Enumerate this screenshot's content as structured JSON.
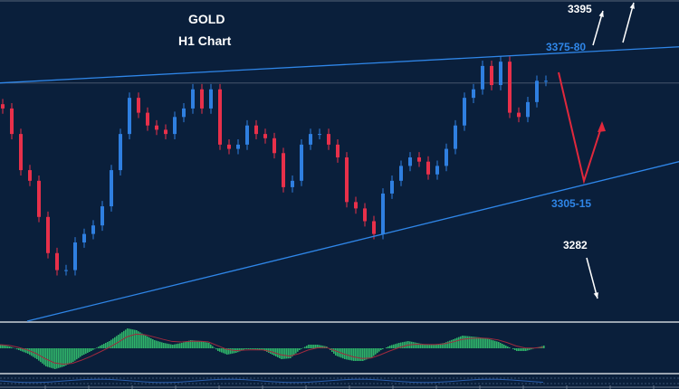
{
  "title": "GOLD",
  "subtitle": "H1 Chart",
  "colors": {
    "background": "#0a1f3b",
    "bull": "#2f7fe0",
    "bear": "#e8304a",
    "trendline": "#2f86e8",
    "macd_hist": "#2fb36a",
    "signal": "#a02a3e",
    "annotation_red": "#e0283c",
    "annotation_white": "#ffffff"
  },
  "chart_data": {
    "type": "candlestick",
    "title": "GOLD",
    "subtitle": "H1 Chart",
    "xlabel": "",
    "ylabel": "",
    "ylim": [
      3250,
      3401
    ],
    "grid": false,
    "close": [
      3350,
      3338,
      3321,
      3316,
      3299,
      3282,
      3274,
      3274,
      3287,
      3291,
      3295,
      3304,
      3321,
      3338,
      3355,
      3348,
      3342,
      3340,
      3338,
      3346,
      3350,
      3359,
      3350,
      3359,
      3333,
      3331,
      3333,
      3342,
      3338,
      3336,
      3329,
      3313,
      3316,
      3333,
      3338,
      3338,
      3333,
      3327,
      3306,
      3303,
      3297,
      3291,
      3310,
      3316,
      3323,
      3327,
      3325,
      3319,
      3323,
      3331,
      3342,
      3355,
      3359,
      3370,
      3361,
      3372,
      3348,
      3346,
      3353,
      3363,
      3363
    ],
    "levels": [
      {
        "label": "3395",
        "price": 3395,
        "color": "#ffffff"
      },
      {
        "label": "3375-80",
        "price": 3378,
        "color": "#2f86e8"
      },
      {
        "label": "3305-15",
        "price": 3310,
        "color": "#2f86e8"
      },
      {
        "label": "3282",
        "price": 3282,
        "color": "#ffffff"
      }
    ],
    "horizontal_line": 3362,
    "trendlines": [
      {
        "name": "upper",
        "start_price": 3362,
        "end_price": 3379
      },
      {
        "name": "lower",
        "start_price": 3250,
        "end_price": 3325
      }
    ],
    "macd_histogram": [
      4,
      2,
      -2,
      -6,
      -12,
      -20,
      -23,
      -20,
      -15,
      -8,
      -3,
      3,
      8,
      15,
      22,
      20,
      14,
      9,
      6,
      4,
      6,
      9,
      8,
      6,
      -3,
      -7,
      -5,
      -1,
      -1,
      -2,
      -7,
      -12,
      -11,
      -2,
      4,
      4,
      2,
      -8,
      -12,
      -14,
      -14,
      -10,
      -2,
      3,
      6,
      8,
      6,
      4,
      4,
      6,
      10,
      14,
      13,
      12,
      10,
      7,
      2,
      -3,
      -3,
      0,
      3
    ]
  }
}
